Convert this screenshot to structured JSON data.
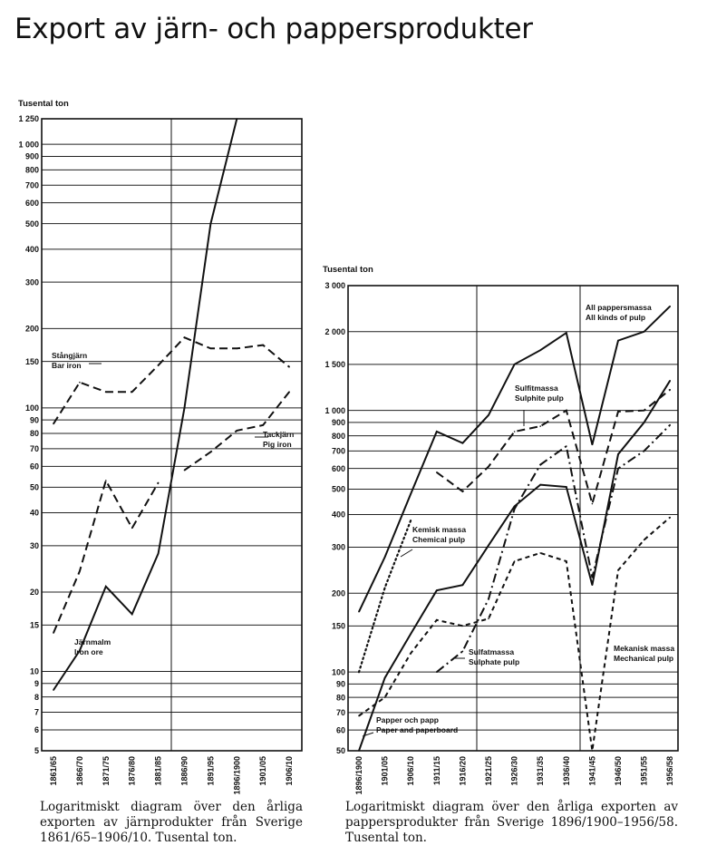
{
  "page_title": "Export av järn- och pappersprodukter",
  "chart_data": [
    {
      "type": "line",
      "scale": "log",
      "unit_label": "Tusental ton",
      "ylim": [
        5,
        1250
      ],
      "y_ticks": [
        5,
        6,
        7,
        8,
        9,
        10,
        15,
        20,
        30,
        40,
        50,
        60,
        70,
        80,
        90,
        100,
        150,
        200,
        300,
        400,
        500,
        600,
        700,
        800,
        900,
        1000,
        1250
      ],
      "y_tick_labels": [
        "5",
        "6",
        "7",
        "8",
        "9",
        "10",
        "15",
        "20",
        "30",
        "40",
        "50",
        "60",
        "70",
        "80",
        "90",
        "100",
        "150",
        "200",
        "300",
        "400",
        "500",
        "600",
        "700",
        "800",
        "900",
        "1 000",
        "1 250"
      ],
      "categories": [
        "1861/65",
        "1866/70",
        "1871/75",
        "1876/80",
        "1881/85",
        "1886/90",
        "1891/95",
        "1896/1900",
        "1901/05",
        "1906/10"
      ],
      "series": [
        {
          "key": "bar_iron",
          "label_lines": [
            "Stångjärn",
            "Bar iron"
          ],
          "style": "dash",
          "values": [
            87,
            125,
            115,
            115,
            145,
            185,
            168,
            168,
            173,
            143
          ]
        },
        {
          "key": "pig_iron",
          "label_lines": [
            "Tackjärn",
            "Pig iron"
          ],
          "style": "dash",
          "values": [
            null,
            null,
            null,
            null,
            null,
            58,
            68,
            82,
            86,
            115
          ]
        },
        {
          "key": "iron_ore",
          "label_lines": [
            "Järnmalm",
            "Iron ore"
          ],
          "style": "solid",
          "values": [
            8.5,
            12,
            21,
            16.5,
            28,
            100,
            500,
            1250,
            null,
            null
          ]
        },
        {
          "key": "early_iron",
          "label_lines": [],
          "style": "dash",
          "values": [
            14,
            24,
            53,
            35,
            52,
            null,
            null,
            null,
            null,
            null
          ]
        }
      ],
      "divider_after": "1881/85",
      "caption": "Logaritmiskt diagram över den årliga exporten av järnprodukter från Sverige 1861/65–1906/10. Tusental ton."
    },
    {
      "type": "line",
      "scale": "log",
      "unit_label": "Tusental ton",
      "ylim": [
        50,
        3000
      ],
      "y_ticks": [
        50,
        60,
        70,
        80,
        90,
        100,
        150,
        200,
        300,
        400,
        500,
        600,
        700,
        800,
        900,
        1000,
        1500,
        2000,
        3000
      ],
      "y_tick_labels": [
        "50",
        "60",
        "70",
        "80",
        "90",
        "100",
        "150",
        "200",
        "300",
        "400",
        "500",
        "600",
        "700",
        "800",
        "900",
        "1 000",
        "1 500",
        "2 000",
        "3 000"
      ],
      "categories": [
        "1896/1900",
        "1901/05",
        "1906/10",
        "1911/15",
        "1916/20",
        "1921/25",
        "1926/30",
        "1931/35",
        "1936/40",
        "1941/45",
        "1946/50",
        "1951/55",
        "1956/58"
      ],
      "series": [
        {
          "key": "all_pulp",
          "label_lines": [
            "All pappersmassa",
            "All kinds of pulp"
          ],
          "style": "solid",
          "values": [
            170,
            275,
            480,
            830,
            750,
            960,
            1500,
            1700,
            1980,
            740,
            1850,
            2000,
            2500
          ]
        },
        {
          "key": "sulphite_pulp",
          "label_lines": [
            "Sulfitmassa",
            "Sulphite pulp"
          ],
          "style": "dash",
          "values": [
            null,
            null,
            null,
            580,
            490,
            610,
            830,
            870,
            1000,
            440,
            990,
            1000,
            1200
          ]
        },
        {
          "key": "chemical_pulp",
          "label_lines": [
            "Kemisk massa",
            "Chemical pulp"
          ],
          "style": "dot",
          "values": [
            100,
            210,
            380,
            null,
            null,
            null,
            null,
            null,
            null,
            null,
            null,
            null,
            null
          ]
        },
        {
          "key": "sulphate_pulp",
          "label_lines": [
            "Sulfatmassa",
            "Sulphate pulp"
          ],
          "style": "dashdot",
          "values": [
            null,
            null,
            null,
            100,
            120,
            190,
            420,
            620,
            730,
            230,
            600,
            700,
            880
          ]
        },
        {
          "key": "mechanical_pulp",
          "label_lines": [
            "Mekanisk massa",
            "Mechanical pulp"
          ],
          "style": "shortdash",
          "values": [
            68,
            80,
            118,
            158,
            150,
            160,
            265,
            285,
            265,
            50,
            245,
            320,
            390
          ]
        },
        {
          "key": "paper_board",
          "label_lines": [
            "Papper och papp",
            "Paper and paperboard"
          ],
          "style": "solid",
          "values": [
            50,
            95,
            140,
            205,
            215,
            305,
            430,
            520,
            510,
            215,
            680,
            900,
            1300
          ]
        }
      ],
      "divider_after": "1916/20",
      "divider_after_2": "1936/40",
      "caption": "Logaritmiskt diagram över den årliga exporten av pappersprodukter från Sverige 1896/1900–1956/58. Tusental ton."
    }
  ]
}
